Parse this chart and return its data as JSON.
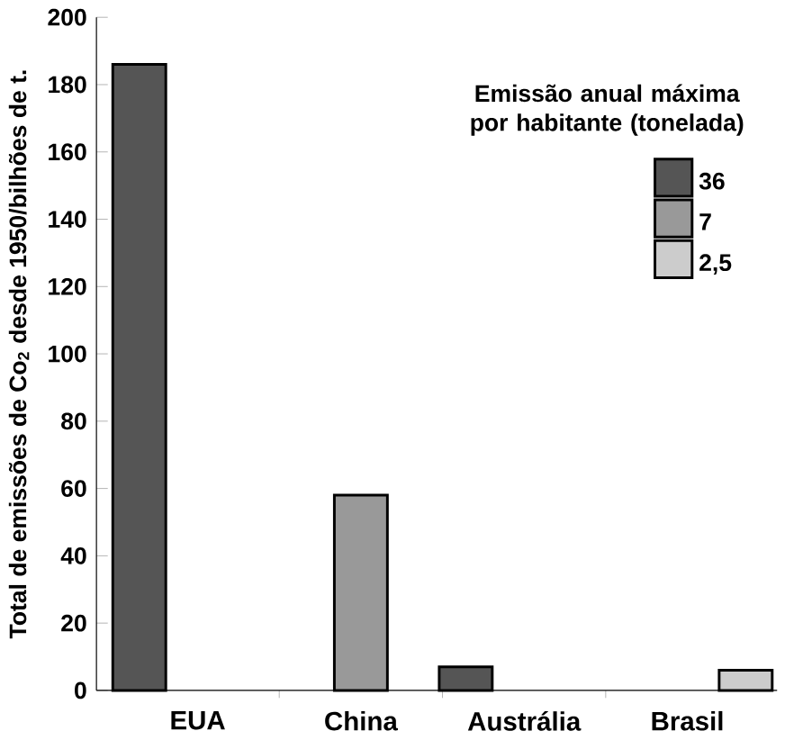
{
  "chart_data": {
    "type": "bar",
    "ylabel": "Total de emissões de Co$_{2}$ desde 1950/bilhões de t.",
    "legend_title": "Emissão anual máxima por habitante (tonelada)",
    "categories": [
      "EUA",
      "China",
      "Austrália",
      "Brasil"
    ],
    "series": [
      {
        "name": "36",
        "color": "#555555",
        "values": [
          186,
          null,
          7,
          null
        ]
      },
      {
        "name": "7",
        "color": "#999999",
        "values": [
          null,
          58,
          null,
          null
        ]
      },
      {
        "name": "2,5",
        "color": "#cccccc",
        "values": [
          null,
          null,
          null,
          6
        ]
      }
    ],
    "ylim": [
      0,
      200
    ],
    "yticks": [
      0,
      20,
      40,
      60,
      80,
      100,
      120,
      140,
      160,
      180,
      200
    ],
    "legend": "top right"
  }
}
